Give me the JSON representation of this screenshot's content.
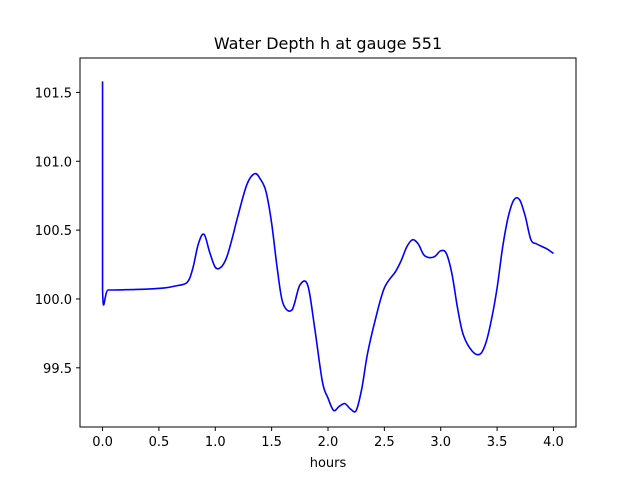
{
  "chart_data": {
    "type": "line",
    "title": "Water Depth h at gauge 551",
    "xlabel": "hours",
    "ylabel": "",
    "xlim": [
      -0.2,
      4.2
    ],
    "ylim": [
      99.07,
      101.75
    ],
    "grid": false,
    "legend": false,
    "xticks": [
      0.0,
      0.5,
      1.0,
      1.5,
      2.0,
      2.5,
      3.0,
      3.5,
      4.0
    ],
    "xtick_labels": [
      "0.0",
      "0.5",
      "1.0",
      "1.5",
      "2.0",
      "2.5",
      "3.0",
      "3.5",
      "4.0"
    ],
    "yticks": [
      99.5,
      100.0,
      100.5,
      101.0,
      101.5
    ],
    "ytick_labels": [
      "99.5",
      "100.0",
      "100.5",
      "101.0",
      "101.5"
    ],
    "series": [
      {
        "color": "#0000ff",
        "points": [
          [
            0.0,
            101.58
          ],
          [
            0.0,
            100.07
          ],
          [
            0.05,
            100.065
          ],
          [
            0.2,
            100.067
          ],
          [
            0.4,
            100.072
          ],
          [
            0.55,
            100.08
          ],
          [
            0.65,
            100.095
          ],
          [
            0.75,
            100.12
          ],
          [
            0.8,
            100.22
          ],
          [
            0.85,
            100.4
          ],
          [
            0.9,
            100.47
          ],
          [
            0.95,
            100.34
          ],
          [
            1.0,
            100.23
          ],
          [
            1.05,
            100.23
          ],
          [
            1.1,
            100.3
          ],
          [
            1.15,
            100.44
          ],
          [
            1.2,
            100.6
          ],
          [
            1.28,
            100.83
          ],
          [
            1.35,
            100.91
          ],
          [
            1.4,
            100.87
          ],
          [
            1.45,
            100.78
          ],
          [
            1.5,
            100.55
          ],
          [
            1.55,
            100.22
          ],
          [
            1.6,
            99.97
          ],
          [
            1.68,
            99.92
          ],
          [
            1.75,
            100.1
          ],
          [
            1.82,
            100.1
          ],
          [
            1.88,
            99.8
          ],
          [
            1.95,
            99.4
          ],
          [
            2.0,
            99.28
          ],
          [
            2.05,
            99.19
          ],
          [
            2.1,
            99.22
          ],
          [
            2.15,
            99.24
          ],
          [
            2.2,
            99.2
          ],
          [
            2.25,
            99.19
          ],
          [
            2.3,
            99.35
          ],
          [
            2.35,
            99.6
          ],
          [
            2.42,
            99.85
          ],
          [
            2.5,
            100.08
          ],
          [
            2.6,
            100.2
          ],
          [
            2.65,
            100.28
          ],
          [
            2.7,
            100.38
          ],
          [
            2.75,
            100.43
          ],
          [
            2.8,
            100.4
          ],
          [
            2.85,
            100.32
          ],
          [
            2.9,
            100.3
          ],
          [
            2.95,
            100.31
          ],
          [
            3.0,
            100.35
          ],
          [
            3.05,
            100.33
          ],
          [
            3.1,
            100.18
          ],
          [
            3.15,
            99.93
          ],
          [
            3.2,
            99.74
          ],
          [
            3.28,
            99.62
          ],
          [
            3.35,
            99.6
          ],
          [
            3.4,
            99.68
          ],
          [
            3.45,
            99.85
          ],
          [
            3.5,
            100.08
          ],
          [
            3.55,
            100.38
          ],
          [
            3.6,
            100.6
          ],
          [
            3.65,
            100.72
          ],
          [
            3.7,
            100.72
          ],
          [
            3.75,
            100.6
          ],
          [
            3.8,
            100.43
          ],
          [
            3.85,
            100.4
          ],
          [
            3.9,
            100.38
          ],
          [
            3.95,
            100.36
          ],
          [
            4.0,
            100.33
          ]
        ]
      }
    ]
  }
}
